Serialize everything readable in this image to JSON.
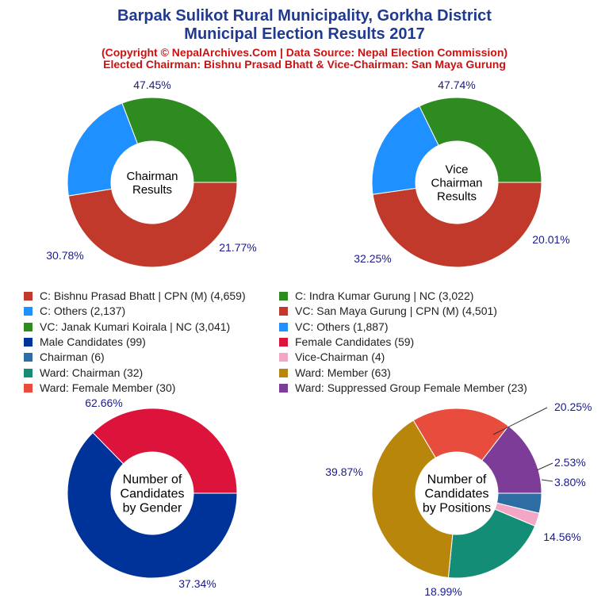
{
  "header": {
    "title_line1": "Barpak Sulikot Rural Municipality, Gorkha District",
    "title_line2": "Municipal Election Results 2017",
    "subtitle_line1": "(Copyright © NepalArchives.Com | Data Source: Nepal Election Commission)",
    "subtitle_line2": "Elected Chairman: Bishnu Prasad Bhatt & Vice-Chairman: San Maya Gurung"
  },
  "legend": [
    {
      "label": "C: Bishnu Prasad Bhatt | CPN (M) (4,659)",
      "color": "#c0392b"
    },
    {
      "label": "C: Indra Kumar Gurung | NC (3,022)",
      "color": "#2e8b1f"
    },
    {
      "label": "C: Others (2,137)",
      "color": "#1e90ff"
    },
    {
      "label": "VC: San Maya Gurung | CPN (M) (4,501)",
      "color": "#c0392b"
    },
    {
      "label": "VC: Janak Kumari Koirala | NC (3,041)",
      "color": "#2e8b1f"
    },
    {
      "label": "VC: Others (1,887)",
      "color": "#1e90ff"
    },
    {
      "label": "Male Candidates (99)",
      "color": "#003399"
    },
    {
      "label": "Female Candidates (59)",
      "color": "#dc143c"
    },
    {
      "label": "Chairman (6)",
      "color": "#2e6da4"
    },
    {
      "label": "Vice-Chairman (4)",
      "color": "#f4a6c6"
    },
    {
      "label": "Ward: Chairman (32)",
      "color": "#138d75"
    },
    {
      "label": "Ward: Member (63)",
      "color": "#b8860b"
    },
    {
      "label": "Ward: Female Member (30)",
      "color": "#e74c3c"
    },
    {
      "label": "Ward: Suppressed Group Female Member (23)",
      "color": "#7d3c98"
    }
  ],
  "chart_data": [
    {
      "type": "pie",
      "center_label": [
        "Chairman",
        "Results"
      ],
      "slices": [
        {
          "name": "C: Bishnu Prasad Bhatt | CPN (M)",
          "value": 4659,
          "pct_label": "47.45%",
          "color": "#c0392b"
        },
        {
          "name": "C: Others",
          "value": 2137,
          "pct_label": "21.77%",
          "color": "#1e90ff"
        },
        {
          "name": "C: Indra Kumar Gurung | NC",
          "value": 3022,
          "pct_label": "30.78%",
          "color": "#2e8b1f"
        }
      ]
    },
    {
      "type": "pie",
      "center_label": [
        "Vice",
        "Chairman",
        "Results"
      ],
      "slices": [
        {
          "name": "VC: San Maya Gurung | CPN (M)",
          "value": 4501,
          "pct_label": "47.74%",
          "color": "#c0392b"
        },
        {
          "name": "VC: Others",
          "value": 1887,
          "pct_label": "20.01%",
          "color": "#1e90ff"
        },
        {
          "name": "VC: Janak Kumari Koirala | NC",
          "value": 3041,
          "pct_label": "32.25%",
          "color": "#2e8b1f"
        }
      ]
    },
    {
      "type": "pie",
      "center_label": [
        "Number of",
        "Candidates",
        "by Gender"
      ],
      "slices": [
        {
          "name": "Male Candidates",
          "value": 99,
          "pct_label": "62.66%",
          "color": "#003399"
        },
        {
          "name": "Female Candidates",
          "value": 59,
          "pct_label": "37.34%",
          "color": "#dc143c"
        }
      ]
    },
    {
      "type": "pie",
      "center_label": [
        "Number of",
        "Candidates",
        "by Positions"
      ],
      "slices": [
        {
          "name": "Chairman",
          "value": 6,
          "pct_label": "3.80%",
          "color": "#2e6da4"
        },
        {
          "name": "Vice-Chairman",
          "value": 4,
          "pct_label": "2.53%",
          "color": "#f4a6c6"
        },
        {
          "name": "Ward: Chairman",
          "value": 32,
          "pct_label": "20.25%",
          "color": "#138d75"
        },
        {
          "name": "Ward: Member",
          "value": 63,
          "pct_label": "39.87%",
          "color": "#b8860b"
        },
        {
          "name": "Ward: Female Member",
          "value": 30,
          "pct_label": "18.99%",
          "color": "#e74c3c"
        },
        {
          "name": "Ward: Suppressed Group Female Member",
          "value": 23,
          "pct_label": "14.56%",
          "color": "#7d3c98"
        }
      ]
    }
  ]
}
